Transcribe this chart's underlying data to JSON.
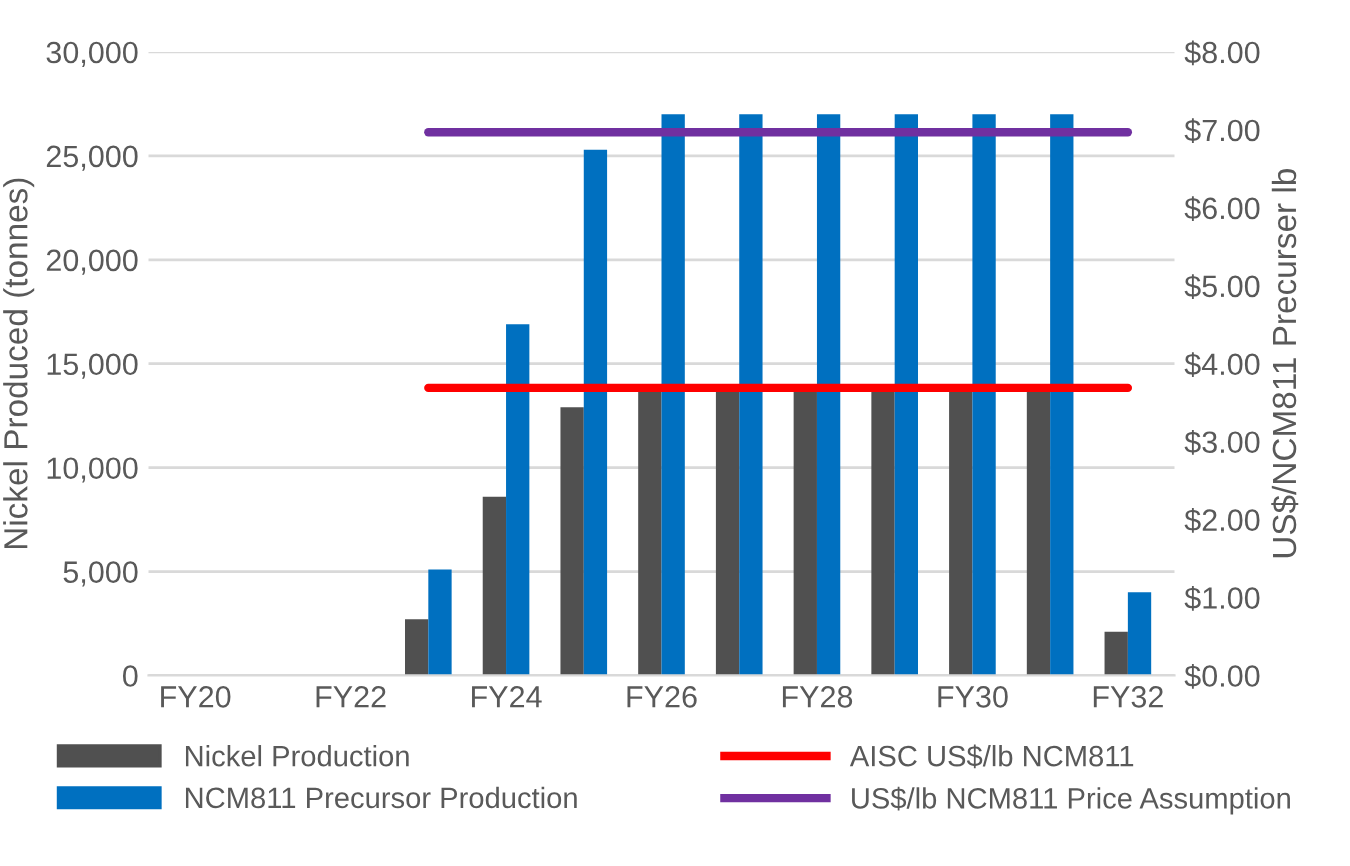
{
  "chart_data": {
    "type": "bar",
    "ylabel": "Nickel Produced (tonnes)",
    "y2label": "US$/NCM811 Precurser lb",
    "categories": [
      "FY20",
      null,
      "FY22",
      null,
      "FY24",
      null,
      "FY26",
      null,
      "FY28",
      null,
      "FY30",
      null,
      "FY32"
    ],
    "series": [
      {
        "name": "Nickel Production",
        "color": "#505050",
        "values": [
          null,
          null,
          null,
          2700,
          8600,
          12900,
          13900,
          13900,
          13900,
          13900,
          13900,
          13900,
          2100
        ]
      },
      {
        "name": "NCM811 Precursor Production",
        "color": "#0070c0",
        "values": [
          null,
          null,
          null,
          5100,
          16900,
          25300,
          27000,
          27000,
          27000,
          27000,
          27000,
          27000,
          4000
        ]
      },
      {
        "name": "AISC US$/lb NCM811",
        "type": "line",
        "axis": "y2",
        "color": "#ff0000",
        "values": [
          null,
          null,
          null,
          3.69,
          3.69,
          3.69,
          3.69,
          3.69,
          3.69,
          3.69,
          3.69,
          3.69,
          3.69
        ]
      },
      {
        "name": "US$/lb NCM811 Price Assumption",
        "type": "line",
        "axis": "y2",
        "color": "#7030a0",
        "values": [
          null,
          null,
          null,
          6.97,
          6.97,
          6.97,
          6.97,
          6.97,
          6.97,
          6.97,
          6.97,
          6.97,
          6.97
        ]
      }
    ],
    "ylim": [
      0,
      30000
    ],
    "yticks": [
      {
        "value": 0,
        "label": "0"
      },
      {
        "value": 5000,
        "label": "5,000"
      },
      {
        "value": 10000,
        "label": "10,000"
      },
      {
        "value": 15000,
        "label": "15,000"
      },
      {
        "value": 20000,
        "label": "20,000"
      },
      {
        "value": 25000,
        "label": "25,000"
      },
      {
        "value": 30000,
        "label": "30,000"
      }
    ],
    "y2lim": [
      0,
      8
    ],
    "y2ticks": [
      {
        "value": 0,
        "label": "$0.00"
      },
      {
        "value": 1,
        "label": "$1.00"
      },
      {
        "value": 2,
        "label": "$2.00"
      },
      {
        "value": 3,
        "label": "$3.00"
      },
      {
        "value": 4,
        "label": "$4.00"
      },
      {
        "value": 5,
        "label": "$5.00"
      },
      {
        "value": 6,
        "label": "$6.00"
      },
      {
        "value": 7,
        "label": "$7.00"
      },
      {
        "value": 8,
        "label": "$8.00"
      }
    ],
    "grid": "y",
    "legend": "bottom",
    "marker": "none",
    "line_style": "solid"
  }
}
